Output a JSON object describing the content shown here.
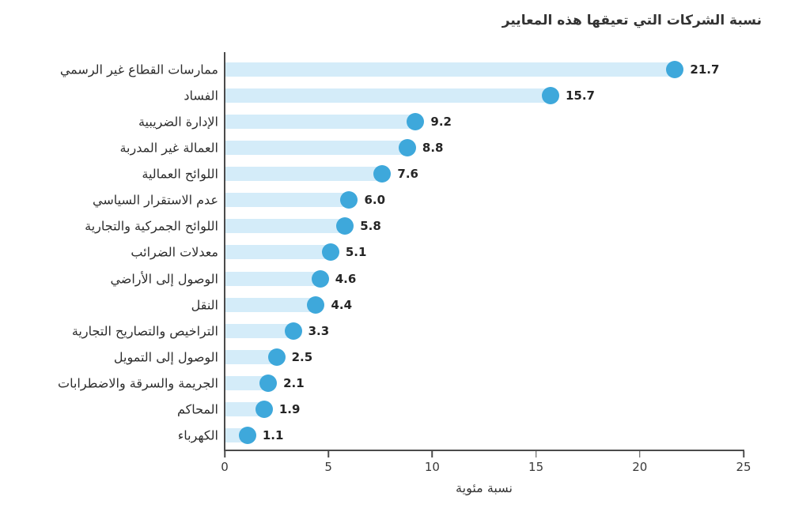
{
  "chart_data": {
    "type": "bar",
    "orientation": "horizontal",
    "title": "نسبة الشركات التي تعيقها هذه المعايير",
    "xlabel": "نسبة مئوية",
    "ylabel": "",
    "xlim": [
      0,
      25
    ],
    "xticks": [
      0,
      5,
      10,
      15,
      20,
      25
    ],
    "grid": false,
    "legend": "none",
    "categories": [
      "ممارسات القطاع غير الرسمي",
      "الفساد",
      "الإدارة الضريبية",
      "العمالة غير المدربة",
      "اللوائح العمالية",
      "عدم الاستقرار السياسي",
      "اللوائح الجمركية والتجارية",
      "معدلات الضرائب",
      "الوصول إلى الأراضي",
      "النقل",
      "التراخيص والتصاريح التجارية",
      "الوصول إلى التمويل",
      "الجريمة والسرقة والاضطرابات",
      "المحاكم",
      "الكهرباء"
    ],
    "values": [
      21.7,
      15.7,
      9.2,
      8.8,
      7.6,
      6.0,
      5.8,
      5.1,
      4.6,
      4.4,
      3.3,
      2.5,
      2.1,
      1.9,
      1.1
    ],
    "value_labels": [
      "21.7",
      "15.7",
      "9.2",
      "8.8",
      "7.6",
      "6.0",
      "5.8",
      "5.1",
      "4.6",
      "4.4",
      "3.3",
      "2.5",
      "2.1",
      "1.9",
      "1.1"
    ],
    "bar_color": "#d4ecf9",
    "marker_color": "#3ea8db",
    "axis_color": "#4b4b4b",
    "text_color": "#2e2e2e"
  }
}
